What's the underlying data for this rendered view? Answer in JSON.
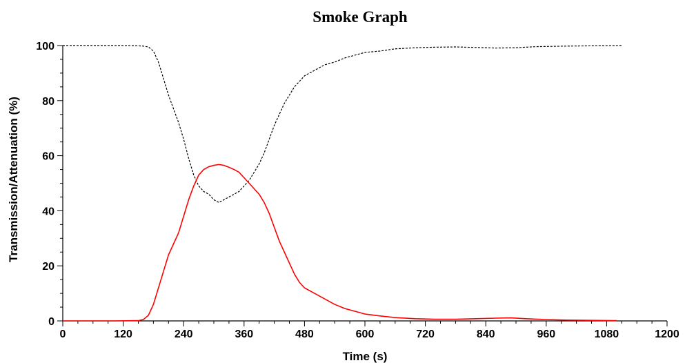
{
  "chart_data": {
    "type": "line",
    "title": "Smoke Graph",
    "xlabel": "Time (s)",
    "ylabel": "Transmission/Attenuation (%)",
    "xlim": [
      0,
      1200
    ],
    "ylim": [
      0,
      100
    ],
    "x_ticks": [
      0,
      120,
      240,
      360,
      480,
      600,
      720,
      840,
      960,
      1080,
      1200
    ],
    "y_ticks": [
      0,
      20,
      40,
      60,
      80,
      100
    ],
    "grid": false,
    "legend": "none",
    "series": [
      {
        "style": "dashed",
        "color": "#000000",
        "points": [
          [
            0,
            100
          ],
          [
            120,
            100
          ],
          [
            150,
            99.9
          ],
          [
            160,
            99.8
          ],
          [
            170,
            99.5
          ],
          [
            180,
            98
          ],
          [
            190,
            94
          ],
          [
            200,
            88
          ],
          [
            210,
            82
          ],
          [
            220,
            77
          ],
          [
            230,
            72
          ],
          [
            240,
            66
          ],
          [
            250,
            59
          ],
          [
            260,
            53
          ],
          [
            270,
            49
          ],
          [
            280,
            47
          ],
          [
            290,
            46
          ],
          [
            300,
            44
          ],
          [
            310,
            43
          ],
          [
            320,
            44
          ],
          [
            330,
            45
          ],
          [
            340,
            46
          ],
          [
            350,
            47
          ],
          [
            360,
            49
          ],
          [
            370,
            51
          ],
          [
            380,
            54
          ],
          [
            390,
            57
          ],
          [
            400,
            61
          ],
          [
            410,
            66
          ],
          [
            420,
            71
          ],
          [
            430,
            75
          ],
          [
            440,
            79
          ],
          [
            450,
            82
          ],
          [
            460,
            85
          ],
          [
            470,
            87
          ],
          [
            480,
            89
          ],
          [
            500,
            91
          ],
          [
            520,
            93
          ],
          [
            540,
            94
          ],
          [
            560,
            95.5
          ],
          [
            580,
            96.5
          ],
          [
            600,
            97.5
          ],
          [
            630,
            98
          ],
          [
            660,
            98.8
          ],
          [
            700,
            99.2
          ],
          [
            740,
            99.4
          ],
          [
            780,
            99.5
          ],
          [
            820,
            99.3
          ],
          [
            860,
            99.1
          ],
          [
            900,
            99.2
          ],
          [
            940,
            99.6
          ],
          [
            1000,
            99.8
          ],
          [
            1050,
            99.9
          ],
          [
            1110,
            100
          ]
        ]
      },
      {
        "style": "solid",
        "color": "#ff0000",
        "points": [
          [
            0,
            0
          ],
          [
            100,
            0
          ],
          [
            150,
            0.1
          ],
          [
            160,
            0.5
          ],
          [
            170,
            2
          ],
          [
            180,
            6
          ],
          [
            190,
            12
          ],
          [
            200,
            18
          ],
          [
            210,
            24
          ],
          [
            220,
            28
          ],
          [
            230,
            32
          ],
          [
            240,
            38
          ],
          [
            250,
            44
          ],
          [
            260,
            49
          ],
          [
            270,
            53
          ],
          [
            280,
            55
          ],
          [
            290,
            56
          ],
          [
            300,
            56.5
          ],
          [
            310,
            56.8
          ],
          [
            320,
            56.5
          ],
          [
            330,
            55.8
          ],
          [
            340,
            55
          ],
          [
            350,
            54
          ],
          [
            360,
            52
          ],
          [
            370,
            50
          ],
          [
            380,
            48
          ],
          [
            390,
            46
          ],
          [
            400,
            43
          ],
          [
            410,
            39
          ],
          [
            420,
            34
          ],
          [
            430,
            29
          ],
          [
            440,
            25
          ],
          [
            450,
            21
          ],
          [
            460,
            17
          ],
          [
            470,
            14
          ],
          [
            480,
            12
          ],
          [
            500,
            10
          ],
          [
            520,
            8
          ],
          [
            540,
            6
          ],
          [
            560,
            4.5
          ],
          [
            580,
            3.5
          ],
          [
            600,
            2.5
          ],
          [
            630,
            1.8
          ],
          [
            660,
            1.2
          ],
          [
            700,
            0.8
          ],
          [
            740,
            0.6
          ],
          [
            780,
            0.6
          ],
          [
            820,
            0.8
          ],
          [
            860,
            1
          ],
          [
            890,
            1.1
          ],
          [
            920,
            0.8
          ],
          [
            960,
            0.5
          ],
          [
            1000,
            0.3
          ],
          [
            1050,
            0.2
          ],
          [
            1100,
            0.1
          ]
        ]
      }
    ]
  }
}
